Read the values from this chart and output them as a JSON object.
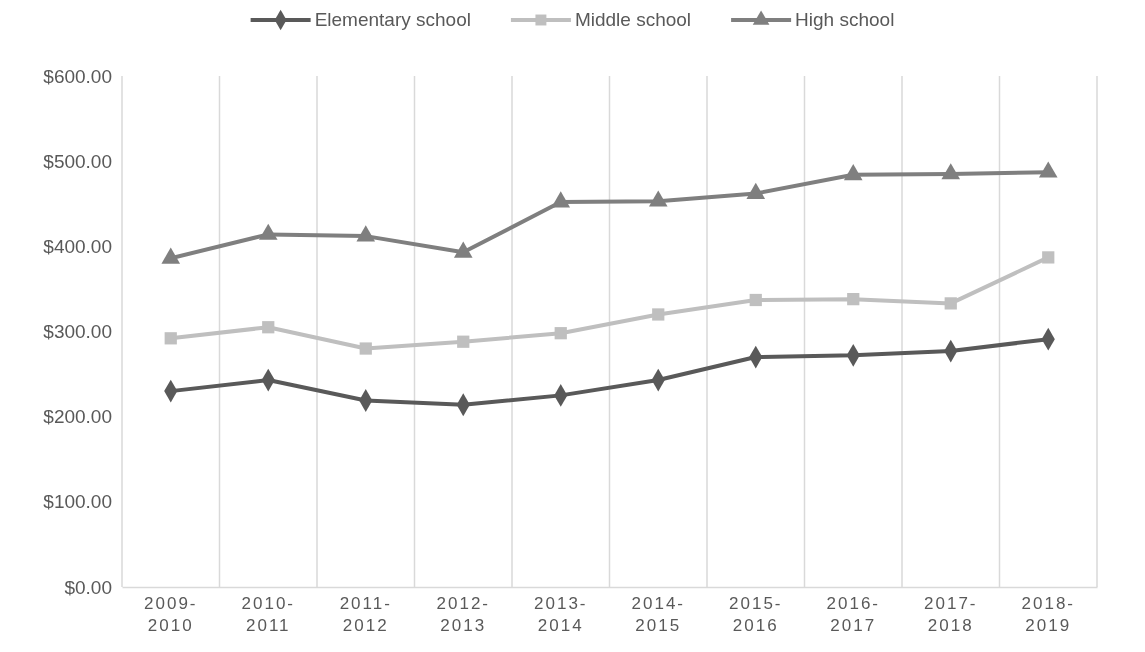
{
  "chart_data": {
    "type": "line",
    "categories": [
      "2009-2010",
      "2010-2011",
      "2011-2012",
      "2012-2013",
      "2013-2014",
      "2014-2015",
      "2015-2016",
      "2016-2017",
      "2017-2018",
      "2018-2019"
    ],
    "series": [
      {
        "name": "Elementary school",
        "color": "#595959",
        "marker": "diamond",
        "values": [
          230,
          243,
          219,
          214,
          225,
          243,
          270,
          272,
          277,
          291
        ]
      },
      {
        "name": "Middle school",
        "color": "#bfbfbf",
        "marker": "square",
        "values": [
          292,
          305,
          280,
          288,
          298,
          320,
          337,
          338,
          333,
          387
        ]
      },
      {
        "name": "High school",
        "color": "#7f7f7f",
        "marker": "triangle",
        "values": [
          386,
          414,
          412,
          393,
          452,
          453,
          462,
          484,
          485,
          487
        ]
      }
    ],
    "ylim": [
      0,
      600
    ],
    "yticks": [
      {
        "value": 0,
        "label": "$0.00"
      },
      {
        "value": 100,
        "label": "$100.00"
      },
      {
        "value": 200,
        "label": "$200.00"
      },
      {
        "value": 300,
        "label": "$300.00"
      },
      {
        "value": 400,
        "label": "$400.00"
      },
      {
        "value": 500,
        "label": "$500.00"
      },
      {
        "value": 600,
        "label": "$600.00"
      }
    ],
    "grid": "x",
    "legend": "top",
    "line_style": "solid"
  }
}
